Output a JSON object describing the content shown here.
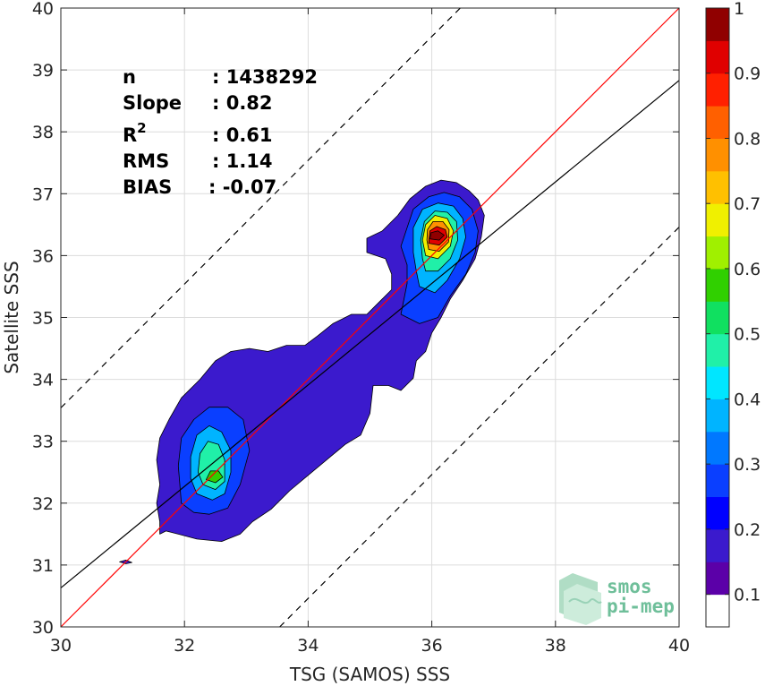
{
  "chart_data": {
    "type": "heatmap",
    "xlabel": "TSG (SAMOS) SSS",
    "ylabel": "Satellite SSS",
    "xlim": [
      30,
      40
    ],
    "ylim": [
      30,
      40
    ],
    "x_ticks": [
      "30",
      "32",
      "34",
      "36",
      "38",
      "40"
    ],
    "y_ticks": [
      "30",
      "31",
      "32",
      "33",
      "34",
      "35",
      "36",
      "37",
      "38",
      "39",
      "40"
    ],
    "grid": true,
    "colorbar": {
      "range": [
        0.05,
        1
      ],
      "tick_labels": [
        "0.1",
        "0.2",
        "0.3",
        "0.4",
        "0.5",
        "0.6",
        "0.7",
        "0.8",
        "0.9",
        "1"
      ],
      "tick_values": [
        0.1,
        0.2,
        0.3,
        0.4,
        0.5,
        0.6,
        0.7,
        0.8,
        0.9,
        1.0
      ],
      "colors": [
        "#ffffff",
        "#5b00a8",
        "#3b1acd",
        "#0000ff",
        "#0a3fff",
        "#0078ff",
        "#00b4ff",
        "#00e6ff",
        "#20f0a8",
        "#10e060",
        "#30d000",
        "#a0f000",
        "#f0f000",
        "#ffc000",
        "#ff9000",
        "#ff6000",
        "#ff2000",
        "#e00000",
        "#900000"
      ]
    },
    "lines": [
      {
        "name": "",
        "kind": "identity",
        "slope": 1.0,
        "intercept": 0.0,
        "color": "#ff0000",
        "style": "solid"
      },
      {
        "name": "",
        "kind": "regression",
        "slope": 0.82,
        "intercept": 6.03,
        "color": "#000000",
        "style": "solid"
      },
      {
        "name": "",
        "kind": "upper bound",
        "slope": 1.0,
        "intercept": 3.54,
        "color": "#000000",
        "style": "dashed"
      },
      {
        "name": "",
        "kind": "lower bound",
        "slope": 1.0,
        "intercept": -3.54,
        "color": "#000000",
        "style": "dashed"
      }
    ],
    "density_peaks": [
      {
        "x": 36.05,
        "y": 36.35,
        "value": 1.0
      },
      {
        "x": 32.55,
        "y": 32.45,
        "value": 0.55
      }
    ],
    "contour_levels": [
      {
        "value": 0.07,
        "fill": "#3b1acd",
        "polys": [
          [
            [
              31.6,
              31.5
            ],
            [
              31.7,
              31.55
            ],
            [
              31.9,
              31.5
            ],
            [
              32.2,
              31.42
            ],
            [
              32.6,
              31.38
            ],
            [
              32.9,
              31.5
            ],
            [
              33.1,
              31.7
            ],
            [
              33.4,
              31.9
            ],
            [
              33.7,
              32.2
            ],
            [
              34.0,
              32.45
            ],
            [
              34.3,
              32.7
            ],
            [
              34.6,
              32.95
            ],
            [
              34.85,
              33.1
            ],
            [
              35.0,
              33.45
            ],
            [
              35.05,
              33.9
            ],
            [
              35.3,
              33.9
            ],
            [
              35.5,
              33.82
            ],
            [
              35.7,
              34.02
            ],
            [
              35.75,
              34.3
            ],
            [
              35.9,
              34.45
            ],
            [
              36.0,
              34.75
            ],
            [
              36.15,
              35.0
            ],
            [
              36.3,
              35.3
            ],
            [
              36.5,
              35.6
            ],
            [
              36.7,
              35.95
            ],
            [
              36.8,
              36.3
            ],
            [
              36.85,
              36.65
            ],
            [
              36.75,
              36.9
            ],
            [
              36.6,
              37.05
            ],
            [
              36.4,
              37.18
            ],
            [
              36.15,
              37.22
            ],
            [
              35.9,
              37.12
            ],
            [
              35.65,
              36.92
            ],
            [
              35.45,
              36.65
            ],
            [
              35.2,
              36.4
            ],
            [
              34.95,
              36.28
            ],
            [
              34.95,
              36.05
            ],
            [
              35.25,
              35.95
            ],
            [
              35.35,
              35.7
            ],
            [
              35.35,
              35.45
            ],
            [
              35.15,
              35.25
            ],
            [
              34.95,
              35.05
            ],
            [
              34.7,
              35.05
            ],
            [
              34.4,
              34.9
            ],
            [
              34.15,
              34.7
            ],
            [
              33.95,
              34.55
            ],
            [
              33.65,
              34.55
            ],
            [
              33.35,
              34.45
            ],
            [
              33.05,
              34.5
            ],
            [
              32.75,
              34.45
            ],
            [
              32.5,
              34.3
            ],
            [
              32.25,
              34.0
            ],
            [
              31.95,
              33.7
            ],
            [
              31.75,
              33.35
            ],
            [
              31.6,
              33.05
            ],
            [
              31.55,
              32.7
            ],
            [
              31.6,
              32.3
            ],
            [
              31.55,
              32.0
            ],
            [
              31.6,
              31.7
            ]
          ],
          [
            [
              30.95,
              31.05
            ],
            [
              31.05,
              31.08
            ],
            [
              31.15,
              31.04
            ],
            [
              31.05,
              31.02
            ]
          ]
        ]
      },
      {
        "value": 0.15,
        "fill": "#0a3fff",
        "polys": [
          [
            [
              31.95,
              32.0
            ],
            [
              32.15,
              31.85
            ],
            [
              32.4,
              31.82
            ],
            [
              32.7,
              31.92
            ],
            [
              32.9,
              32.3
            ],
            [
              33.05,
              32.85
            ],
            [
              32.95,
              33.35
            ],
            [
              32.7,
              33.55
            ],
            [
              32.4,
              33.55
            ],
            [
              32.15,
              33.35
            ],
            [
              31.95,
              33.05
            ],
            [
              31.9,
              32.6
            ]
          ],
          [
            [
              35.5,
              35.05
            ],
            [
              35.8,
              34.9
            ],
            [
              36.1,
              35.0
            ],
            [
              36.3,
              35.35
            ],
            [
              36.55,
              35.7
            ],
            [
              36.7,
              36.05
            ],
            [
              36.75,
              36.4
            ],
            [
              36.65,
              36.75
            ],
            [
              36.45,
              36.95
            ],
            [
              36.2,
              37.02
            ],
            [
              35.95,
              36.95
            ],
            [
              35.7,
              36.75
            ],
            [
              35.6,
              36.45
            ],
            [
              35.5,
              36.15
            ],
            [
              35.6,
              35.85
            ],
            [
              35.6,
              35.55
            ]
          ]
        ]
      },
      {
        "value": 0.3,
        "fill": "#00b4ff",
        "polys": [
          [
            [
              32.2,
              32.15
            ],
            [
              32.45,
              32.05
            ],
            [
              32.65,
              32.15
            ],
            [
              32.75,
              32.5
            ],
            [
              32.75,
              32.85
            ],
            [
              32.6,
              33.15
            ],
            [
              32.4,
              33.25
            ],
            [
              32.2,
              33.1
            ],
            [
              32.1,
              32.75
            ],
            [
              32.1,
              32.4
            ]
          ],
          [
            [
              35.8,
              35.5
            ],
            [
              36.05,
              35.4
            ],
            [
              36.25,
              35.6
            ],
            [
              36.45,
              35.95
            ],
            [
              36.55,
              36.3
            ],
            [
              36.5,
              36.6
            ],
            [
              36.35,
              36.8
            ],
            [
              36.1,
              36.85
            ],
            [
              35.85,
              36.75
            ],
            [
              35.7,
              36.45
            ],
            [
              35.7,
              36.05
            ],
            [
              35.75,
              35.75
            ]
          ]
        ]
      },
      {
        "value": 0.45,
        "fill": "#20f0a8",
        "polys": [
          [
            [
              32.3,
              32.3
            ],
            [
              32.5,
              32.22
            ],
            [
              32.65,
              32.35
            ],
            [
              32.65,
              32.7
            ],
            [
              32.55,
              32.95
            ],
            [
              32.38,
              33.0
            ],
            [
              32.25,
              32.8
            ],
            [
              32.22,
              32.5
            ]
          ],
          [
            [
              35.9,
              35.75
            ],
            [
              36.1,
              35.75
            ],
            [
              36.3,
              35.95
            ],
            [
              36.42,
              36.25
            ],
            [
              36.4,
              36.55
            ],
            [
              36.25,
              36.7
            ],
            [
              36.05,
              36.72
            ],
            [
              35.88,
              36.55
            ],
            [
              35.82,
              36.25
            ],
            [
              35.85,
              35.95
            ]
          ]
        ]
      },
      {
        "value": 0.55,
        "fill": "#30d000",
        "polys": [
          [
            [
              32.35,
              32.38
            ],
            [
              32.5,
              32.33
            ],
            [
              32.62,
              32.42
            ],
            [
              32.55,
              32.52
            ],
            [
              32.42,
              32.52
            ]
          ]
        ]
      },
      {
        "value": 0.65,
        "fill": "#f0f000",
        "polys": [
          [
            [
              35.9,
              36.0
            ],
            [
              36.1,
              35.95
            ],
            [
              36.3,
              36.15
            ],
            [
              36.35,
              36.4
            ],
            [
              36.25,
              36.6
            ],
            [
              36.05,
              36.65
            ],
            [
              35.9,
              36.5
            ],
            [
              35.85,
              36.25
            ]
          ]
        ]
      },
      {
        "value": 0.75,
        "fill": "#ff9000",
        "polys": [
          [
            [
              35.95,
              36.1
            ],
            [
              36.12,
              36.07
            ],
            [
              36.27,
              36.22
            ],
            [
              36.28,
              36.42
            ],
            [
              36.18,
              36.55
            ],
            [
              36.02,
              36.55
            ],
            [
              35.93,
              36.42
            ],
            [
              35.92,
              36.25
            ]
          ]
        ]
      },
      {
        "value": 0.9,
        "fill": "#e00000",
        "polys": [
          [
            [
              35.95,
              36.2
            ],
            [
              36.12,
              36.17
            ],
            [
              36.25,
              36.3
            ],
            [
              36.22,
              36.42
            ],
            [
              36.08,
              36.47
            ],
            [
              35.97,
              36.4
            ]
          ]
        ]
      },
      {
        "value": 1.0,
        "fill": "#900000",
        "polys": [
          [
            [
              35.97,
              36.27
            ],
            [
              36.12,
              36.25
            ],
            [
              36.2,
              36.33
            ],
            [
              36.1,
              36.4
            ],
            [
              35.99,
              36.37
            ]
          ]
        ]
      }
    ]
  },
  "stats": [
    {
      "label": "n",
      "value": ": 1438292"
    },
    {
      "label": "Slope",
      "value": ": 0.82"
    },
    {
      "label": "R",
      "sup": "2",
      "value": ": 0.61"
    },
    {
      "label": "RMS",
      "value": ": 1.14"
    },
    {
      "label": "BIAS",
      "value": ": -0.07"
    }
  ],
  "logo": {
    "line1": "smos",
    "line2": "pi-mep"
  }
}
